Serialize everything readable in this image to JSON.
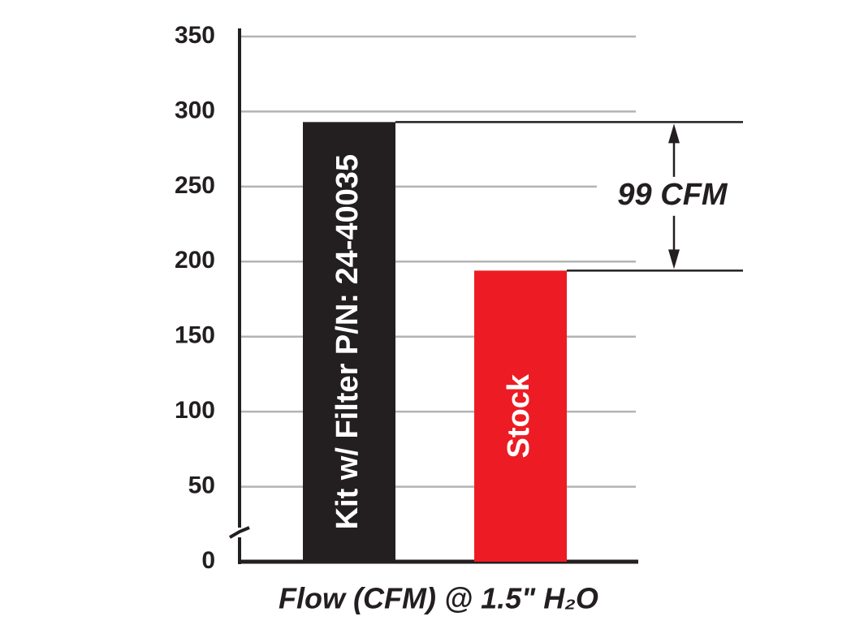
{
  "chart_data": {
    "type": "bar",
    "categories": [
      "Kit w/ Filter P/N: 24-40035",
      "Stock"
    ],
    "values": [
      293,
      194
    ],
    "colors": [
      "#231f20",
      "#ed1c24"
    ],
    "ylim": [
      0,
      350
    ],
    "yticks": [
      0,
      50,
      100,
      150,
      200,
      250,
      300,
      350
    ],
    "grid": true,
    "annotation": "99 CFM",
    "x_label": "Flow (CFM) @ 1.5\" H₂O"
  }
}
